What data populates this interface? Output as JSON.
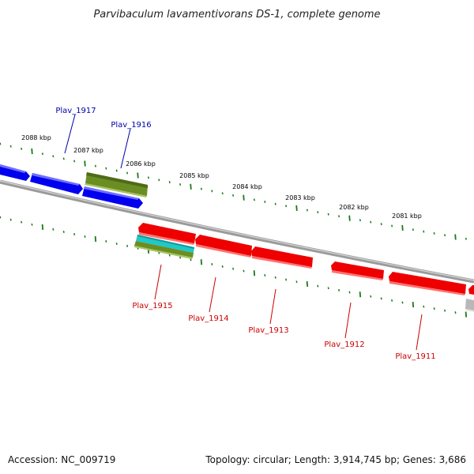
{
  "title": "Parvibaculum lavamentivorans DS-1, complete genome",
  "footer": {
    "accession": "Accession: NC_009719",
    "summary": "Topology: circular; Length: 3,914,745 bp; Genes: 3,686"
  },
  "colors": {
    "forward_gene": "#0000ee",
    "reverse_gene": "#ee0000",
    "rna_gene": "#6b8e23",
    "cyan_feature": "#20c8c8",
    "backbone": "#888888",
    "tick": "#1a7a1a",
    "forward_label": "#0000aa",
    "reverse_label": "#cc0000"
  },
  "kbp_labels": [
    "2088 kbp",
    "2087 kbp",
    "2086 kbp",
    "2085 kbp",
    "2084 kbp",
    "2083 kbp",
    "2082 kbp",
    "2081 kbp"
  ],
  "gene_labels": {
    "forward": [
      "Plav_1917",
      "Plav_1916"
    ],
    "reverse": [
      "Plav_1915",
      "Plav_1914",
      "Plav_1913",
      "Plav_1912",
      "Plav_1911"
    ]
  }
}
